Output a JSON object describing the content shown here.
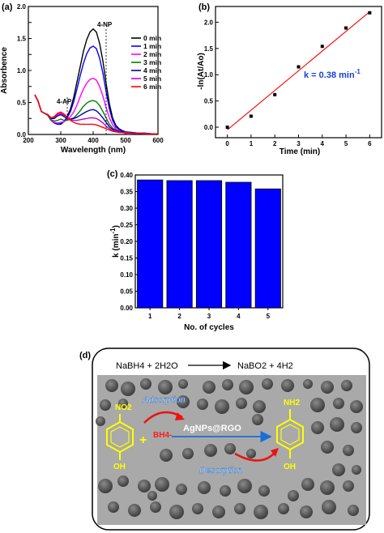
{
  "panel_labels": {
    "a": "(a)",
    "b": "(b)",
    "c": "(c)",
    "d": "(d)"
  },
  "chart_data": [
    {
      "panel": "a",
      "type": "line",
      "xlabel": "Wavelength (nm)",
      "ylabel": "Absorbence",
      "xlim": [
        200,
        600
      ],
      "ylim": [
        0,
        2.0
      ],
      "xticks": [
        200,
        300,
        400,
        500,
        600
      ],
      "yticks": [
        0.0,
        0.25,
        0.5,
        0.75,
        1.0,
        1.25,
        1.5,
        1.75,
        2.0
      ],
      "ytick_labels": [
        "0.0",
        "",
        "0.5",
        "",
        "1.0",
        "",
        "1.5",
        "",
        "2.0"
      ],
      "grid": false,
      "legend_position": "top-right",
      "annotations": [
        {
          "text": "4-NP",
          "x": 400
        },
        {
          "text": "4-AP",
          "x": 300
        }
      ],
      "x": [
        220,
        230,
        240,
        250,
        260,
        270,
        280,
        290,
        300,
        310,
        320,
        330,
        340,
        350,
        360,
        370,
        380,
        390,
        400,
        410,
        420,
        430,
        440,
        450,
        460,
        470,
        480,
        490,
        500,
        520,
        540,
        560,
        580,
        600
      ],
      "series": [
        {
          "name": "0 min",
          "color": "#000000",
          "values": [
            0.62,
            0.52,
            0.36,
            0.33,
            0.3,
            0.22,
            0.18,
            0.16,
            0.16,
            0.2,
            0.28,
            0.4,
            0.58,
            0.82,
            1.06,
            1.3,
            1.48,
            1.6,
            1.65,
            1.6,
            1.42,
            1.15,
            0.8,
            0.48,
            0.26,
            0.14,
            0.09,
            0.06,
            0.04,
            0.03,
            0.02,
            0.02,
            0.01,
            0.01
          ]
        },
        {
          "name": "1 min",
          "color": "#0000ff",
          "values": [
            0.62,
            0.52,
            0.36,
            0.33,
            0.3,
            0.22,
            0.18,
            0.16,
            0.17,
            0.2,
            0.26,
            0.36,
            0.51,
            0.71,
            0.92,
            1.11,
            1.26,
            1.35,
            1.38,
            1.34,
            1.19,
            0.96,
            0.67,
            0.4,
            0.22,
            0.12,
            0.08,
            0.05,
            0.04,
            0.03,
            0.02,
            0.02,
            0.01,
            0.01
          ]
        },
        {
          "name": "2 min",
          "color": "#ff00ff",
          "values": [
            0.62,
            0.52,
            0.36,
            0.33,
            0.3,
            0.22,
            0.19,
            0.18,
            0.19,
            0.2,
            0.23,
            0.28,
            0.35,
            0.46,
            0.59,
            0.71,
            0.8,
            0.86,
            0.88,
            0.85,
            0.75,
            0.6,
            0.42,
            0.26,
            0.15,
            0.09,
            0.06,
            0.04,
            0.03,
            0.02,
            0.02,
            0.01,
            0.01,
            0.01
          ]
        },
        {
          "name": "3 min",
          "color": "#008000",
          "values": [
            0.62,
            0.52,
            0.36,
            0.33,
            0.3,
            0.23,
            0.21,
            0.22,
            0.24,
            0.22,
            0.22,
            0.24,
            0.26,
            0.31,
            0.37,
            0.44,
            0.49,
            0.52,
            0.53,
            0.51,
            0.45,
            0.36,
            0.26,
            0.16,
            0.1,
            0.07,
            0.05,
            0.04,
            0.03,
            0.02,
            0.02,
            0.01,
            0.01,
            0.01
          ]
        },
        {
          "name": "4 min",
          "color": "#0000aa",
          "values": [
            0.62,
            0.52,
            0.36,
            0.33,
            0.31,
            0.25,
            0.25,
            0.29,
            0.31,
            0.28,
            0.25,
            0.24,
            0.25,
            0.27,
            0.3,
            0.33,
            0.36,
            0.38,
            0.39,
            0.37,
            0.32,
            0.26,
            0.19,
            0.12,
            0.08,
            0.06,
            0.05,
            0.04,
            0.03,
            0.02,
            0.02,
            0.01,
            0.01,
            0.01
          ]
        },
        {
          "name": "5 min",
          "color": "#cc00cc",
          "values": [
            0.62,
            0.52,
            0.36,
            0.33,
            0.31,
            0.26,
            0.27,
            0.31,
            0.33,
            0.3,
            0.26,
            0.23,
            0.22,
            0.22,
            0.23,
            0.24,
            0.25,
            0.26,
            0.26,
            0.25,
            0.22,
            0.18,
            0.13,
            0.09,
            0.06,
            0.05,
            0.04,
            0.03,
            0.03,
            0.02,
            0.02,
            0.01,
            0.01,
            0.01
          ]
        },
        {
          "name": "6 min",
          "color": "#ff0000",
          "values": [
            0.62,
            0.52,
            0.36,
            0.33,
            0.31,
            0.26,
            0.28,
            0.33,
            0.35,
            0.32,
            0.27,
            0.22,
            0.19,
            0.17,
            0.16,
            0.16,
            0.16,
            0.16,
            0.16,
            0.15,
            0.13,
            0.11,
            0.09,
            0.07,
            0.05,
            0.04,
            0.03,
            0.03,
            0.02,
            0.02,
            0.02,
            0.01,
            0.01,
            0.01
          ]
        }
      ]
    },
    {
      "panel": "b",
      "type": "scatter",
      "xlabel": "Time (min)",
      "ylabel": "-ln(At/Ao)",
      "xlim": [
        -0.5,
        6.5
      ],
      "ylim": [
        -0.2,
        2.3
      ],
      "xticks": [
        0,
        1,
        2,
        3,
        4,
        5,
        6
      ],
      "yticks": [
        0.0,
        0.5,
        1.0,
        1.5,
        2.0
      ],
      "grid": false,
      "annotation": "k = 0.38 min",
      "annotation_superscript": "-1",
      "series": [
        {
          "name": "data",
          "color": "#000000",
          "x": [
            0,
            1,
            2,
            3,
            4,
            5,
            6
          ],
          "y": [
            0.0,
            0.21,
            0.62,
            1.15,
            1.54,
            1.89,
            2.18
          ]
        },
        {
          "name": "fit",
          "color": "#ff0000",
          "x": [
            0,
            6
          ],
          "y": [
            -0.05,
            2.2
          ]
        }
      ]
    },
    {
      "panel": "c",
      "type": "bar",
      "xlabel": "No. of cycles",
      "ylabel": "k (min",
      "ylabel_superscript": "-1",
      "ylabel_close": ")",
      "categories": [
        "1",
        "2",
        "3",
        "4",
        "5"
      ],
      "values": [
        0.385,
        0.383,
        0.383,
        0.378,
        0.358
      ],
      "ylim": [
        0,
        0.4
      ],
      "yticks": [
        0.0,
        0.05,
        0.1,
        0.15,
        0.2,
        0.25,
        0.3,
        0.35,
        0.4
      ],
      "ytick_labels": [
        "0.00",
        "0.05",
        "0.10",
        "0.15",
        "0.20",
        "0.25",
        "0.30",
        "0.35",
        "0.40"
      ],
      "color": "#0000ff",
      "grid": false
    }
  ],
  "scheme": {
    "equation_left": "NaBH4 + 2H2O",
    "equation_right": "NaBO2 + 4H2",
    "catalyst": "AgNPs@RGO",
    "adsorption": "Adsorption",
    "desorption": "Desorption",
    "no2": "NO2",
    "nh2": "NH2",
    "oh_left": "OH",
    "oh_right": "OH",
    "plus": "+",
    "bh4": "BH4-",
    "colors": {
      "nitro": "#ffff00",
      "arrow_blue": "#1a6fd6",
      "arrow_red": "#ee1111",
      "bh4": "#ff1a1a"
    }
  }
}
